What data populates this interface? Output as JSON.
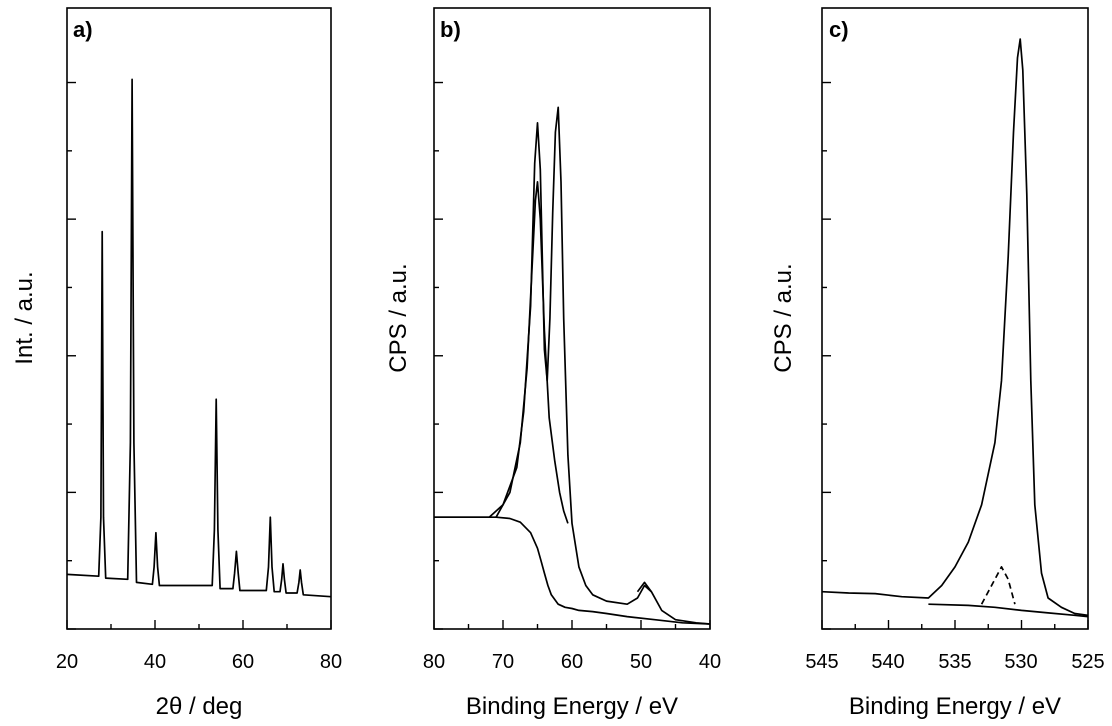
{
  "chart_data": [
    {
      "id": "a",
      "type": "line",
      "panel_label": "a)",
      "xlabel": "2θ / deg",
      "ylabel": "Int. / a.u.",
      "xlim": [
        20,
        80
      ],
      "x_ticks": [
        "20",
        "40",
        "60",
        "80"
      ],
      "y_tick_labels": false,
      "grid": false,
      "series": [
        {
          "x": [
            20,
            27.2,
            27.7,
            28.0,
            28.3,
            28.8,
            33.8,
            34.4,
            34.8,
            35.2,
            35.8,
            39.4,
            39.8,
            40.2,
            40.6,
            41.0,
            53.0,
            53.5,
            53.9,
            54.3,
            54.8,
            57.7,
            58.1,
            58.5,
            58.9,
            59.3,
            65.3,
            65.8,
            66.2,
            66.6,
            67.1,
            68.4,
            68.8,
            69.1,
            69.4,
            69.8,
            72.3,
            72.7,
            73.0,
            73.3,
            73.7,
            80
          ],
          "y": [
            0.088,
            0.085,
            0.18,
            0.64,
            0.18,
            0.082,
            0.08,
            0.3,
            0.885,
            0.3,
            0.075,
            0.072,
            0.1,
            0.155,
            0.1,
            0.07,
            0.07,
            0.16,
            0.37,
            0.16,
            0.065,
            0.065,
            0.09,
            0.125,
            0.09,
            0.062,
            0.062,
            0.1,
            0.18,
            0.1,
            0.06,
            0.06,
            0.08,
            0.105,
            0.08,
            0.058,
            0.058,
            0.075,
            0.095,
            0.075,
            0.055,
            0.052
          ]
        }
      ]
    },
    {
      "id": "b",
      "type": "line",
      "panel_label": "b)",
      "xlabel": "Binding Energy / eV",
      "ylabel": "CPS / a.u.",
      "xlim": [
        80,
        40
      ],
      "x_ticks": [
        "80",
        "70",
        "60",
        "50",
        "40"
      ],
      "y_tick_labels": false,
      "grid": false,
      "series": [
        {
          "x": [
            80,
            75,
            72,
            70,
            68,
            67,
            66,
            65.4,
            65.0,
            64.6,
            64.0,
            63.6,
            63.2,
            62.8,
            62.4,
            62.0,
            61.6,
            61.2,
            60.6,
            60,
            59,
            58,
            57,
            55,
            52,
            50.5,
            49.5,
            48.5,
            47,
            45,
            42,
            40
          ],
          "y": [
            0.18,
            0.18,
            0.18,
            0.2,
            0.26,
            0.35,
            0.52,
            0.75,
            0.815,
            0.74,
            0.45,
            0.4,
            0.5,
            0.67,
            0.8,
            0.84,
            0.72,
            0.5,
            0.28,
            0.17,
            0.1,
            0.07,
            0.055,
            0.045,
            0.04,
            0.05,
            0.07,
            0.06,
            0.03,
            0.015,
            0.01,
            0.008
          ]
        },
        {
          "x": [
            71,
            69,
            67.5,
            66.5,
            65.8,
            65.3,
            65.0,
            64.6,
            64.0,
            63.3,
            62.5,
            61.8,
            61.2,
            60.6
          ],
          "y": [
            0.18,
            0.22,
            0.3,
            0.42,
            0.58,
            0.69,
            0.72,
            0.66,
            0.48,
            0.34,
            0.27,
            0.22,
            0.19,
            0.17
          ]
        },
        {
          "x": [
            80,
            75,
            71,
            69,
            67.5,
            66,
            65,
            64.5,
            64,
            63.5,
            63,
            62,
            61,
            60,
            59,
            57,
            55,
            52,
            48,
            44,
            40
          ],
          "y": [
            0.18,
            0.18,
            0.18,
            0.178,
            0.172,
            0.155,
            0.13,
            0.11,
            0.09,
            0.07,
            0.055,
            0.04,
            0.035,
            0.033,
            0.03,
            0.028,
            0.025,
            0.02,
            0.015,
            0.01,
            0.008
          ]
        },
        {
          "x": [
            48.5,
            49.5,
            50.5
          ],
          "y": [
            0.06,
            0.075,
            0.06
          ]
        }
      ]
    },
    {
      "id": "c",
      "type": "line",
      "panel_label": "c)",
      "xlabel": "Binding Energy / eV",
      "ylabel": "CPS / a.u.",
      "xlim": [
        545,
        525
      ],
      "x_ticks": [
        "545",
        "540",
        "535",
        "530",
        "525"
      ],
      "y_tick_labels": false,
      "grid": false,
      "series": [
        {
          "x": [
            545,
            543,
            541,
            539,
            537,
            536,
            535,
            534,
            533,
            532,
            531.5,
            531,
            530.6,
            530.3,
            530.1,
            529.9,
            529.6,
            529.3,
            529,
            528.5,
            528,
            527,
            526,
            525
          ],
          "y": [
            0.06,
            0.058,
            0.057,
            0.052,
            0.05,
            0.07,
            0.1,
            0.14,
            0.2,
            0.3,
            0.4,
            0.6,
            0.8,
            0.92,
            0.95,
            0.9,
            0.7,
            0.4,
            0.2,
            0.09,
            0.05,
            0.035,
            0.025,
            0.022
          ]
        },
        {
          "x": [
            537,
            534,
            532,
            530,
            528,
            526,
            525
          ],
          "y": [
            0.04,
            0.038,
            0.035,
            0.03,
            0.026,
            0.022,
            0.02
          ]
        },
        {
          "x": [
            533,
            532,
            531.5,
            531,
            530.5
          ],
          "y": [
            0.04,
            0.08,
            0.1,
            0.08,
            0.04
          ]
        }
      ]
    }
  ]
}
